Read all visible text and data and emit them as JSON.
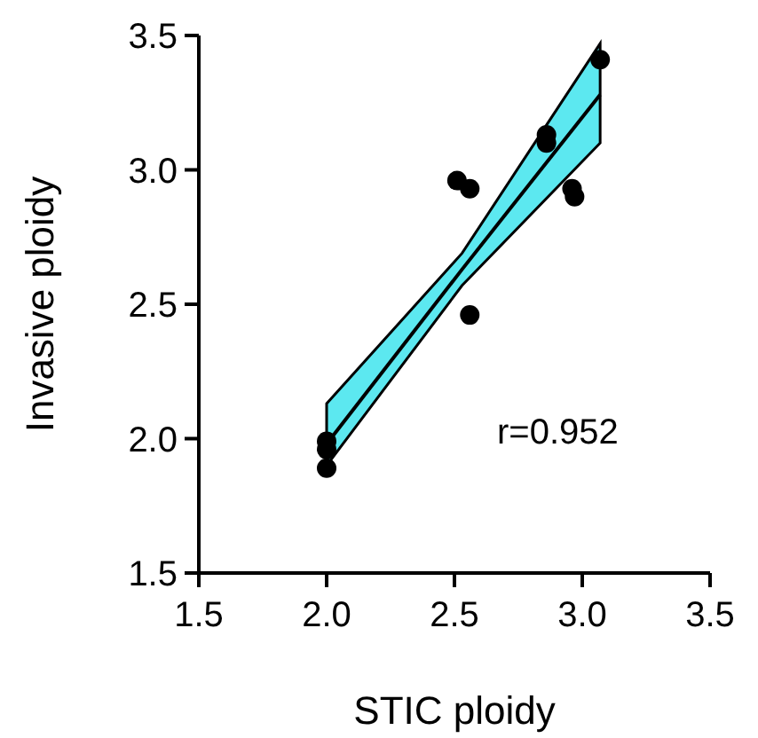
{
  "chart_data": {
    "type": "scatter",
    "xlabel": "STIC ploidy",
    "ylabel": "Invasive ploidy",
    "xlim": [
      1.5,
      3.5
    ],
    "ylim": [
      1.5,
      3.5
    ],
    "xticks": [
      {
        "value": 1.5,
        "label": "1.5"
      },
      {
        "value": 2,
        "label": "2.0"
      },
      {
        "value": 2.5,
        "label": "2.5"
      },
      {
        "value": 3,
        "label": "3.0"
      },
      {
        "value": 3.5,
        "label": "3.5"
      }
    ],
    "yticks": [
      {
        "value": 1.5,
        "label": "1.5"
      },
      {
        "value": 2,
        "label": "2.0"
      },
      {
        "value": 2.5,
        "label": "2.5"
      },
      {
        "value": 3,
        "label": "3.0"
      },
      {
        "value": 3.5,
        "label": "3.5"
      }
    ],
    "grid": false,
    "marker": "circle",
    "annotations": [
      "r=0.952"
    ],
    "series": [
      {
        "type": "line",
        "marker": "none",
        "color": "#000000",
        "x": [
          2.0,
          2.53,
          3.07
        ],
        "values": [
          1.98,
          2.63,
          3.28
        ],
        "lower": [
          1.9,
          2.57,
          3.1
        ],
        "upper": [
          2.13,
          2.69,
          3.47
        ]
      },
      {
        "color": "#000000",
        "x": [
          2.0,
          2.0,
          2.0,
          2.51,
          2.56,
          2.56,
          2.86,
          2.86,
          2.96,
          2.97,
          3.07
        ],
        "values": [
          1.99,
          1.96,
          1.89,
          2.96,
          2.93,
          2.46,
          3.13,
          3.1,
          2.93,
          2.9,
          3.41
        ]
      }
    ]
  }
}
